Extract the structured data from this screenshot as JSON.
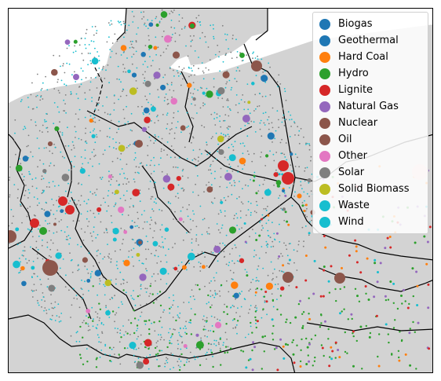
{
  "map": {
    "land_color": "#d3d3d3",
    "sea_color": "#ffffff",
    "border_color": "#000000"
  },
  "legend": {
    "items": [
      {
        "label": "Biogas",
        "color": "#1f77b4"
      },
      {
        "label": "Geothermal",
        "color": "#1f77b4"
      },
      {
        "label": "Hard Coal",
        "color": "#ff7f0e"
      },
      {
        "label": "Hydro",
        "color": "#2ca02c"
      },
      {
        "label": "Lignite",
        "color": "#d62728"
      },
      {
        "label": "Natural Gas",
        "color": "#9467bd"
      },
      {
        "label": "Nuclear",
        "color": "#8c564b"
      },
      {
        "label": "Oil",
        "color": "#8c564b"
      },
      {
        "label": "Other",
        "color": "#e377c2"
      },
      {
        "label": "Solar",
        "color": "#7f7f7f"
      },
      {
        "label": "Solid Biomass",
        "color": "#bcbd22"
      },
      {
        "label": "Waste",
        "color": "#17becf"
      },
      {
        "label": "Wind",
        "color": "#17becf"
      }
    ]
  }
}
